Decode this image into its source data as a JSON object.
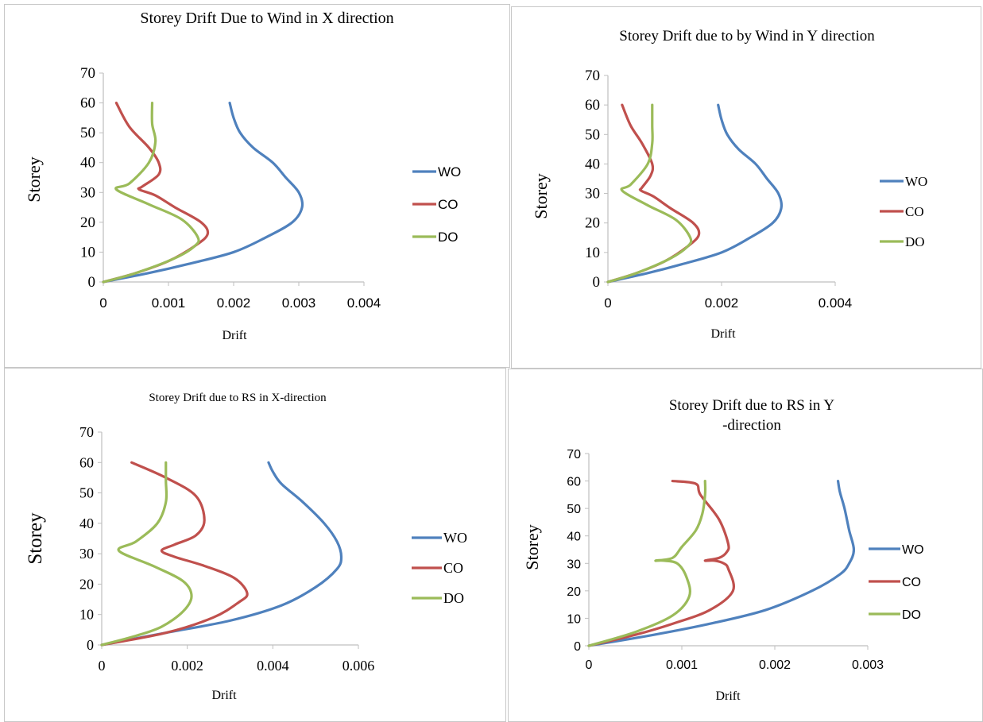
{
  "colors": {
    "WO": "#4f81bd",
    "CO": "#c0504d",
    "DO": "#9bbb59",
    "axis": "#bfbfbf",
    "text": "#000000"
  },
  "chart_data": [
    {
      "type": "line",
      "title": "Storey Drift Due to Wind in X direction",
      "xlabel": "Drift",
      "ylabel": "Storey",
      "xlim": [
        0,
        0.004
      ],
      "ylim": [
        0,
        70
      ],
      "xticks": [
        "0",
        "0.001",
        "0.002",
        "0.003",
        "0.004"
      ],
      "yticks": [
        "0",
        "10",
        "20",
        "30",
        "40",
        "50",
        "60",
        "70"
      ],
      "grid": false,
      "legend": "right",
      "series": [
        {
          "name": "WO",
          "color": "#4f81bd",
          "points": [
            [
              0,
              0
            ],
            [
              0.0007,
              3
            ],
            [
              0.0013,
              6
            ],
            [
              0.002,
              10
            ],
            [
              0.0025,
              15
            ],
            [
              0.0029,
              20
            ],
            [
              0.00305,
              25
            ],
            [
              0.003,
              30
            ],
            [
              0.0028,
              35
            ],
            [
              0.0026,
              40
            ],
            [
              0.0023,
              45
            ],
            [
              0.0021,
              50
            ],
            [
              0.002,
              55
            ],
            [
              0.00194,
              60
            ]
          ]
        },
        {
          "name": "CO",
          "color": "#c0504d",
          "points": [
            [
              0,
              0
            ],
            [
              0.0005,
              3
            ],
            [
              0.001,
              7
            ],
            [
              0.0014,
              12
            ],
            [
              0.0016,
              16
            ],
            [
              0.0015,
              20
            ],
            [
              0.0011,
              25
            ],
            [
              0.0008,
              29
            ],
            [
              0.00055,
              31
            ],
            [
              0.0006,
              32
            ],
            [
              0.00085,
              36
            ],
            [
              0.00085,
              40
            ],
            [
              0.0007,
              45
            ],
            [
              0.0004,
              52
            ],
            [
              0.0002,
              60
            ]
          ]
        },
        {
          "name": "DO",
          "color": "#9bbb59",
          "points": [
            [
              0,
              0
            ],
            [
              0.0005,
              3
            ],
            [
              0.0011,
              8
            ],
            [
              0.0014,
              12
            ],
            [
              0.00145,
              15
            ],
            [
              0.0012,
              21
            ],
            [
              0.0007,
              26
            ],
            [
              0.0002,
              31
            ],
            [
              0.0004,
              33
            ],
            [
              0.0007,
              40
            ],
            [
              0.0008,
              47
            ],
            [
              0.00075,
              53
            ],
            [
              0.00075,
              60
            ]
          ]
        }
      ]
    },
    {
      "type": "line",
      "title": "Storey Drift due to by Wind in Y direction",
      "xlabel": "Drift",
      "ylabel": "Storey",
      "xlim": [
        0,
        0.004
      ],
      "ylim": [
        0,
        70
      ],
      "xticks": [
        "0",
        "0.002",
        "0.004"
      ],
      "xtick_values": [
        0,
        0.002,
        0.004
      ],
      "yticks": [
        "0",
        "10",
        "20",
        "30",
        "40",
        "50",
        "60",
        "70"
      ],
      "grid": false,
      "legend": "right",
      "series": [
        {
          "name": "WO",
          "color": "#4f81bd",
          "points": [
            [
              0,
              0
            ],
            [
              0.0007,
              3
            ],
            [
              0.0013,
              6
            ],
            [
              0.002,
              10
            ],
            [
              0.0025,
              15
            ],
            [
              0.0029,
              20
            ],
            [
              0.00305,
              25
            ],
            [
              0.003,
              30
            ],
            [
              0.0028,
              35
            ],
            [
              0.0026,
              40
            ],
            [
              0.0023,
              45
            ],
            [
              0.0021,
              50
            ],
            [
              0.002,
              55
            ],
            [
              0.00194,
              60
            ]
          ]
        },
        {
          "name": "CO",
          "color": "#c0504d",
          "points": [
            [
              0,
              0
            ],
            [
              0.0005,
              3
            ],
            [
              0.001,
              7
            ],
            [
              0.0014,
              12
            ],
            [
              0.0016,
              16
            ],
            [
              0.0015,
              20
            ],
            [
              0.0011,
              25
            ],
            [
              0.0008,
              29
            ],
            [
              0.00058,
              31
            ],
            [
              0.0006,
              32
            ],
            [
              0.00075,
              36
            ],
            [
              0.00078,
              40
            ],
            [
              0.0006,
              47
            ],
            [
              0.0004,
              53
            ],
            [
              0.00025,
              60
            ]
          ]
        },
        {
          "name": "DO",
          "color": "#9bbb59",
          "points": [
            [
              0,
              0
            ],
            [
              0.0005,
              3
            ],
            [
              0.0011,
              8
            ],
            [
              0.0014,
              12
            ],
            [
              0.00145,
              15
            ],
            [
              0.0012,
              21
            ],
            [
              0.0007,
              26
            ],
            [
              0.00025,
              31
            ],
            [
              0.0004,
              33
            ],
            [
              0.0007,
              40
            ],
            [
              0.00078,
              47
            ],
            [
              0.00078,
              53
            ],
            [
              0.00078,
              60
            ]
          ]
        }
      ]
    },
    {
      "type": "line",
      "title": "Storey Drift due to RS in X-direction",
      "xlabel": "Drift",
      "ylabel": "Storey",
      "xlim": [
        0,
        0.006
      ],
      "ylim": [
        0,
        70
      ],
      "xticks": [
        "0",
        "0.002",
        "0.004",
        "0.006"
      ],
      "xtick_values": [
        0,
        0.002,
        0.004,
        0.006
      ],
      "yticks": [
        "0",
        "10",
        "20",
        "30",
        "40",
        "50",
        "60",
        "70"
      ],
      "grid": false,
      "legend": "right",
      "series": [
        {
          "name": "WO",
          "color": "#4f81bd",
          "points": [
            [
              0,
              0
            ],
            [
              0.0015,
              4
            ],
            [
              0.003,
              8
            ],
            [
              0.0042,
              13
            ],
            [
              0.005,
              19
            ],
            [
              0.0055,
              25
            ],
            [
              0.0056,
              29
            ],
            [
              0.0055,
              34
            ],
            [
              0.0052,
              40
            ],
            [
              0.0047,
              47
            ],
            [
              0.0042,
              53
            ],
            [
              0.004,
              57
            ],
            [
              0.0039,
              60
            ]
          ]
        },
        {
          "name": "CO",
          "color": "#c0504d",
          "points": [
            [
              0,
              0
            ],
            [
              0.0015,
              4
            ],
            [
              0.0026,
              9
            ],
            [
              0.0032,
              14
            ],
            [
              0.0034,
              17
            ],
            [
              0.0031,
              22
            ],
            [
              0.0024,
              26
            ],
            [
              0.0017,
              29
            ],
            [
              0.0014,
              31
            ],
            [
              0.0017,
              33
            ],
            [
              0.0022,
              36
            ],
            [
              0.0024,
              41
            ],
            [
              0.0022,
              49
            ],
            [
              0.0015,
              55
            ],
            [
              0.0007,
              60
            ]
          ]
        },
        {
          "name": "DO",
          "color": "#9bbb59",
          "points": [
            [
              0,
              0
            ],
            [
              0.0008,
              3
            ],
            [
              0.0014,
              6
            ],
            [
              0.0019,
              11
            ],
            [
              0.0021,
              16
            ],
            [
              0.0019,
              21
            ],
            [
              0.0012,
              26
            ],
            [
              0.0004,
              31
            ],
            [
              0.0008,
              34
            ],
            [
              0.0013,
              40
            ],
            [
              0.0015,
              47
            ],
            [
              0.0015,
              54
            ],
            [
              0.0015,
              60
            ]
          ]
        }
      ]
    },
    {
      "type": "line",
      "title": "Storey Drift due to RS in Y -direction",
      "title_lines": [
        "Storey Drift due to RS in Y",
        "-direction"
      ],
      "xlabel": "Drift",
      "ylabel": "Storey",
      "xlim": [
        0,
        0.003
      ],
      "ylim": [
        0,
        70
      ],
      "xticks": [
        "0",
        "0.001",
        "0.002",
        "0.003"
      ],
      "xtick_values": [
        0,
        0.001,
        0.002,
        0.003
      ],
      "yticks": [
        "0",
        "10",
        "20",
        "30",
        "40",
        "50",
        "60",
        "70"
      ],
      "grid": false,
      "legend": "right",
      "series": [
        {
          "name": "WO",
          "color": "#4f81bd",
          "points": [
            [
              0,
              0
            ],
            [
              0.0007,
              4
            ],
            [
              0.0013,
              8
            ],
            [
              0.0019,
              13
            ],
            [
              0.0024,
              20
            ],
            [
              0.0027,
              26
            ],
            [
              0.0028,
              30
            ],
            [
              0.00285,
              35
            ],
            [
              0.0028,
              42
            ],
            [
              0.00275,
              50
            ],
            [
              0.0027,
              56
            ],
            [
              0.00268,
              60
            ]
          ]
        },
        {
          "name": "CO",
          "color": "#c0504d",
          "points": [
            [
              0,
              0
            ],
            [
              0.0005,
              4
            ],
            [
              0.0009,
              8
            ],
            [
              0.0013,
              13
            ],
            [
              0.00155,
              20
            ],
            [
              0.0015,
              28
            ],
            [
              0.00145,
              30
            ],
            [
              0.00135,
              31
            ],
            [
              0.00125,
              31
            ],
            [
              0.0014,
              32
            ],
            [
              0.00148,
              34
            ],
            [
              0.0015,
              37
            ],
            [
              0.0014,
              46
            ],
            [
              0.0012,
              55
            ],
            [
              0.00115,
              59
            ],
            [
              0.0009,
              60
            ]
          ]
        },
        {
          "name": "DO",
          "color": "#9bbb59",
          "points": [
            [
              0,
              0
            ],
            [
              0.0005,
              5
            ],
            [
              0.0009,
              11
            ],
            [
              0.00108,
              18
            ],
            [
              0.00105,
              25
            ],
            [
              0.00095,
              30
            ],
            [
              0.0008,
              31
            ],
            [
              0.00072,
              31
            ],
            [
              0.0009,
              32
            ],
            [
              0.001,
              36
            ],
            [
              0.00115,
              42
            ],
            [
              0.00122,
              48
            ],
            [
              0.00125,
              55
            ],
            [
              0.00125,
              60
            ]
          ]
        }
      ]
    }
  ]
}
